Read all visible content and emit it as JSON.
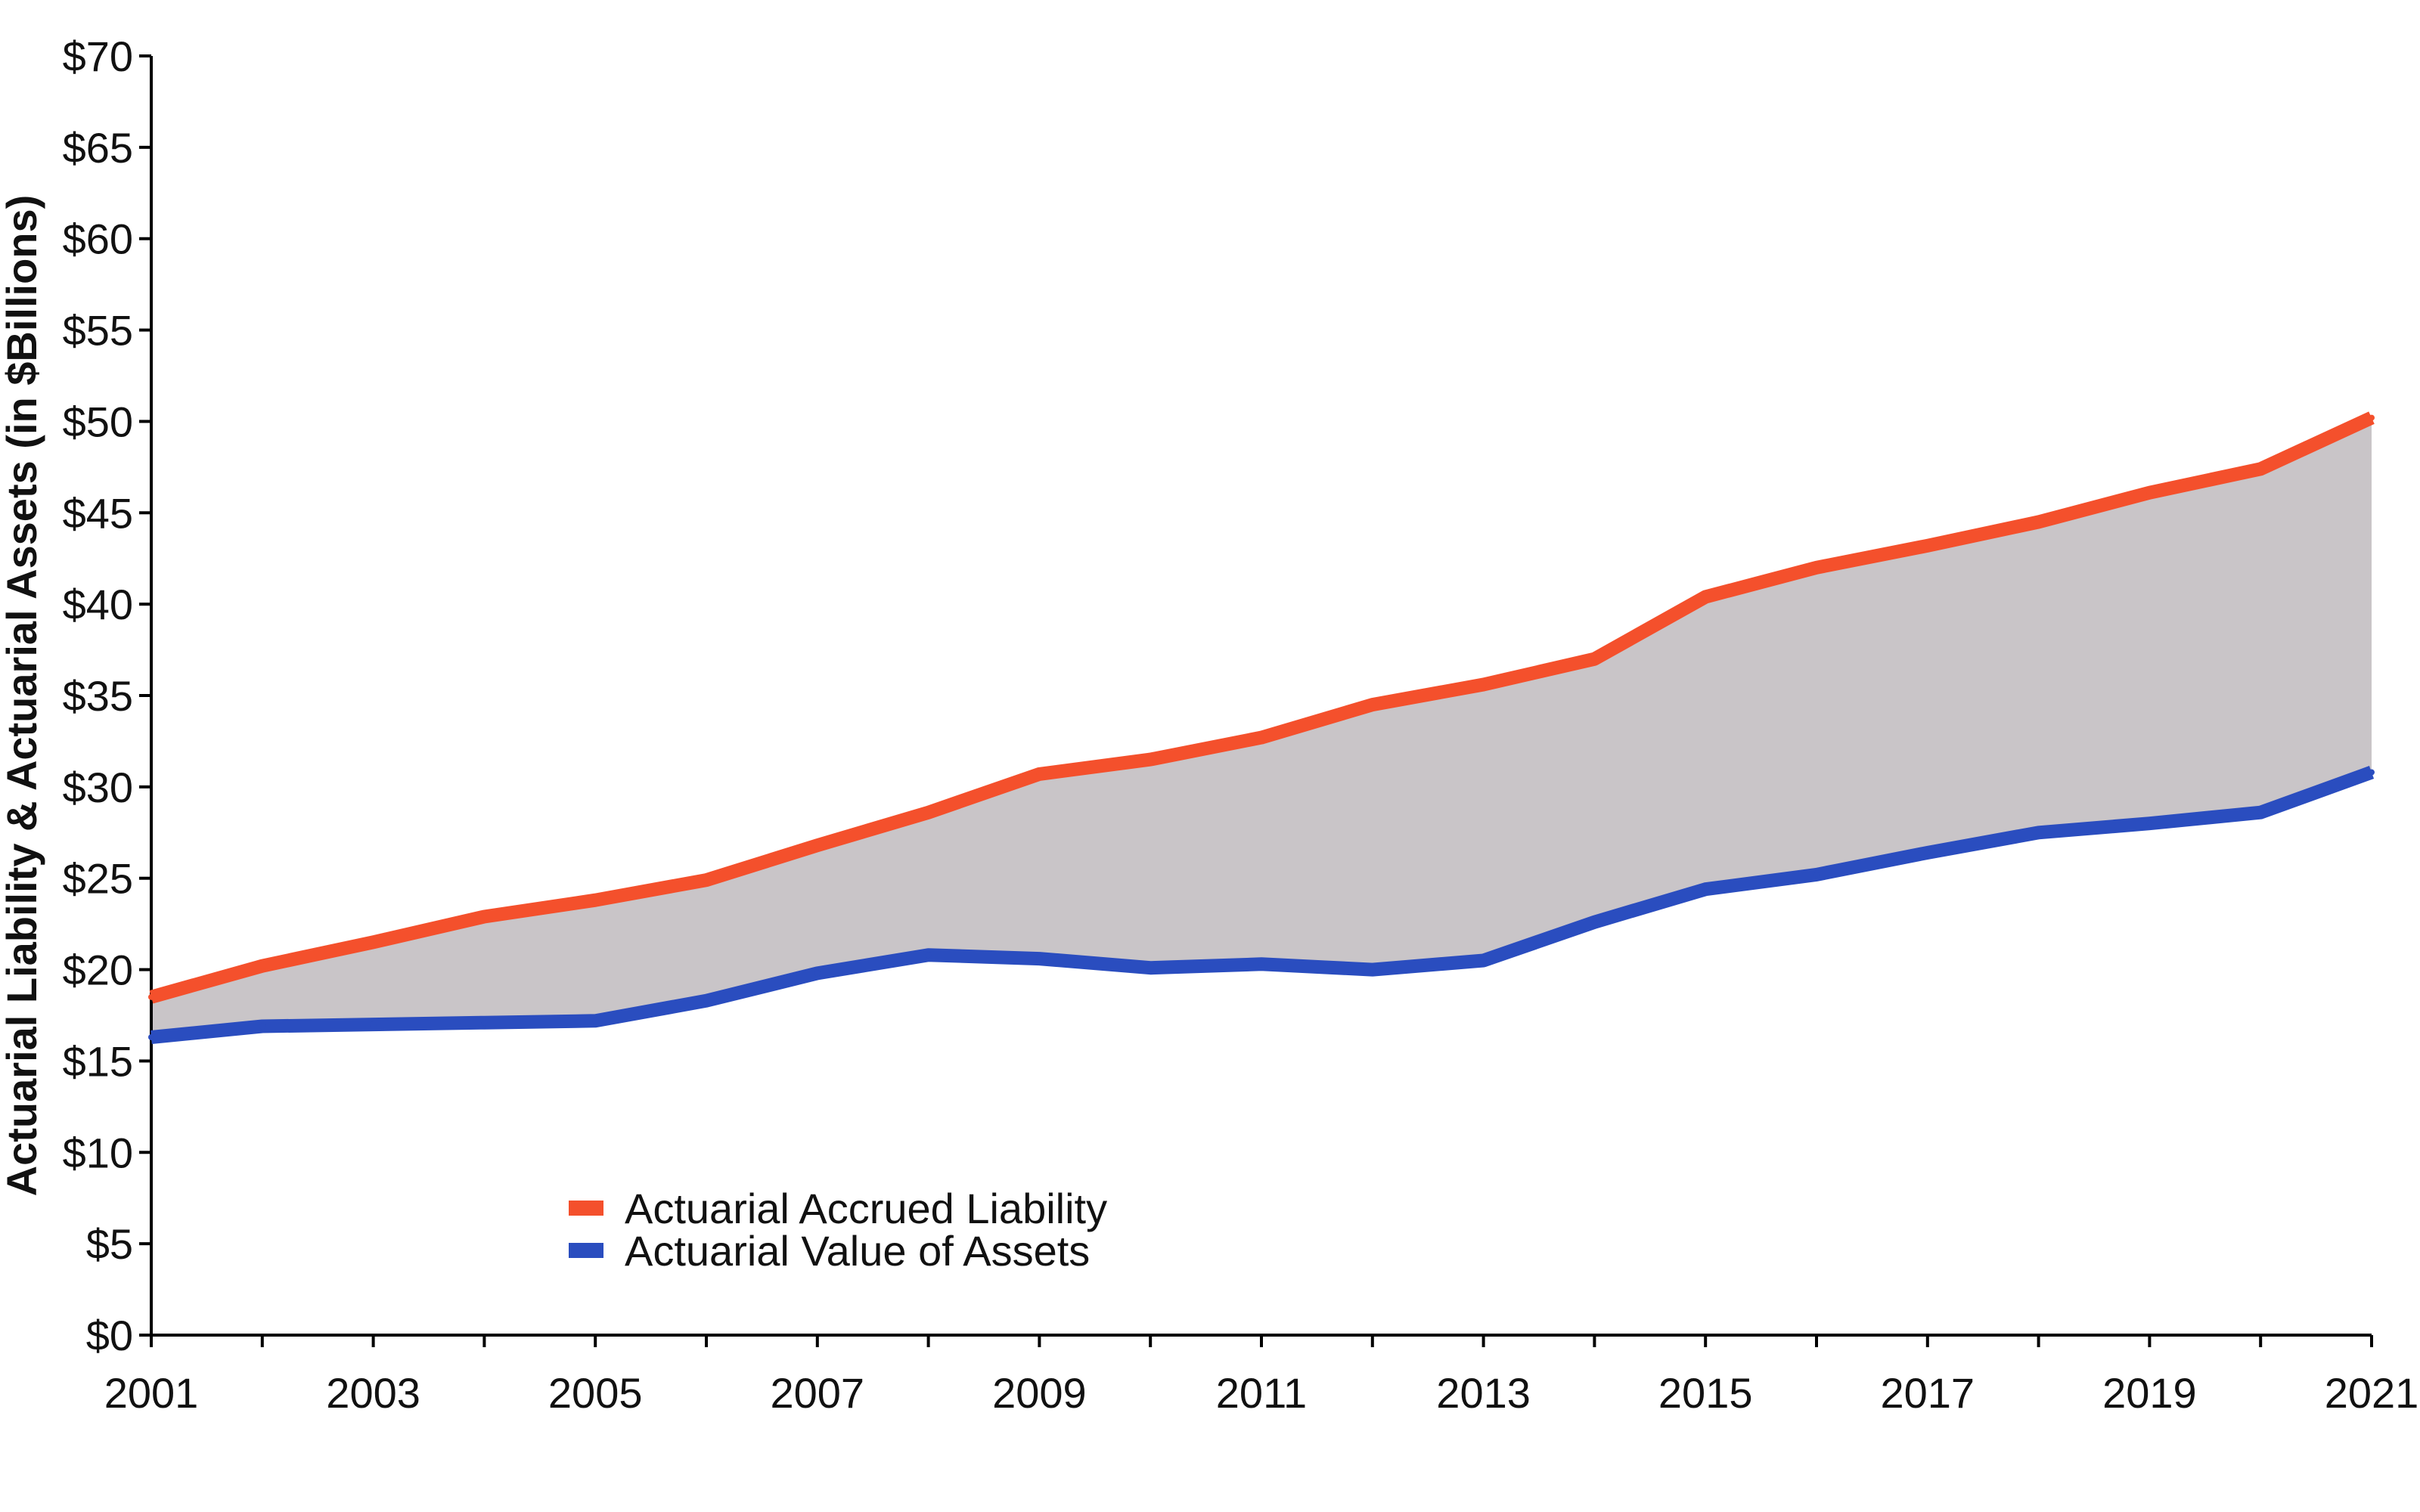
{
  "chart_data": {
    "type": "line",
    "title": "",
    "xlabel": "",
    "ylabel": "Actuarial Liability & Actuarial Assets (in $Billions)",
    "x": [
      2001,
      2002,
      2003,
      2004,
      2005,
      2006,
      2007,
      2008,
      2009,
      2010,
      2011,
      2012,
      2013,
      2014,
      2015,
      2016,
      2017,
      2018,
      2019,
      2020,
      2021
    ],
    "x_tick_labels": [
      "2001",
      "2003",
      "2005",
      "2007",
      "2009",
      "2011",
      "2013",
      "2015",
      "2017",
      "2019",
      "2021"
    ],
    "y_tick_labels": [
      "$0",
      "$5",
      "$10",
      "$15",
      "$20",
      "$25",
      "$30",
      "$35",
      "$40",
      "$45",
      "$50",
      "$55",
      "$60",
      "$65",
      "$70"
    ],
    "xlim": [
      2001,
      2021
    ],
    "ylim": [
      0,
      70
    ],
    "grid": false,
    "legend_position": "bottom-left",
    "fill_between_series": true,
    "fill_color": "#c9c5c8",
    "series": [
      {
        "name": "Actuarial Accrued Liability",
        "color": "#f4502c",
        "values": [
          18.5,
          20.2,
          21.5,
          22.9,
          23.8,
          24.9,
          26.8,
          28.6,
          30.7,
          31.5,
          32.7,
          34.5,
          35.6,
          37.0,
          40.4,
          42.0,
          43.2,
          44.5,
          46.1,
          47.4,
          50.2
        ]
      },
      {
        "name": "Actuarial Value of Assets",
        "color": "#2a4dbf",
        "values": [
          16.3,
          16.9,
          17.0,
          17.1,
          17.2,
          18.3,
          19.8,
          20.8,
          20.6,
          20.1,
          20.3,
          20.0,
          20.5,
          22.6,
          24.4,
          25.2,
          26.4,
          27.5,
          28.0,
          28.6,
          30.8
        ]
      }
    ]
  }
}
